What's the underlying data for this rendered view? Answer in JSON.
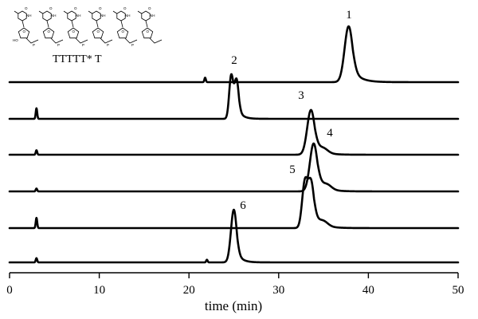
{
  "structure": {
    "caption": "TTTTT* T",
    "atoms": {
      "ring_o": "O",
      "nh": "NH",
      "n": "N",
      "ho": "HO",
      "p": "P",
      "o": "O"
    }
  },
  "chart_data": {
    "type": "line",
    "xlabel": "time (min)",
    "ylabel": "",
    "xlim": [
      0,
      50
    ],
    "xticks": [
      0,
      10,
      20,
      30,
      40,
      50
    ],
    "grid": false,
    "legend": "none",
    "series": [
      {
        "label": "1",
        "baseline_noise": [
          [
            21.8,
            0.08
          ]
        ],
        "peaks": [
          {
            "t": 37.8,
            "h": 1.0,
            "w": 0.45,
            "tail": 0.9
          }
        ]
      },
      {
        "label": "2",
        "baseline_noise": [
          [
            3.0,
            0.22
          ]
        ],
        "peaks": [
          {
            "t": 24.7,
            "h": 0.88,
            "w": 0.22,
            "tail": 0.1
          },
          {
            "t": 25.3,
            "h": 0.82,
            "w": 0.25,
            "tail": 0.5
          }
        ]
      },
      {
        "label": "3",
        "baseline_noise": [
          [
            3.0,
            0.1
          ]
        ],
        "peaks": [
          {
            "t": 33.6,
            "h": 1.0,
            "w": 0.42,
            "tail": 0.85,
            "shoulder": 35.0
          }
        ]
      },
      {
        "label": "4",
        "baseline_noise": [
          [
            3.0,
            0.06
          ]
        ],
        "peaks": [
          {
            "t": 33.9,
            "h": 1.0,
            "w": 0.42,
            "tail": 0.9,
            "shoulder": 35.4
          }
        ]
      },
      {
        "label": "5",
        "baseline_noise": [
          [
            3.0,
            0.22
          ]
        ],
        "peaks": [
          {
            "t": 32.9,
            "h": 0.92,
            "w": 0.3,
            "tail": 0.1
          },
          {
            "t": 33.6,
            "h": 1.0,
            "w": 0.35,
            "tail": 0.9,
            "shoulder": 35.0
          }
        ]
      },
      {
        "label": "6",
        "baseline_noise": [
          [
            3.0,
            0.08
          ],
          [
            22.0,
            0.05
          ]
        ],
        "peaks": [
          {
            "t": 25.0,
            "h": 1.0,
            "w": 0.32,
            "tail": 0.55
          }
        ]
      }
    ]
  }
}
